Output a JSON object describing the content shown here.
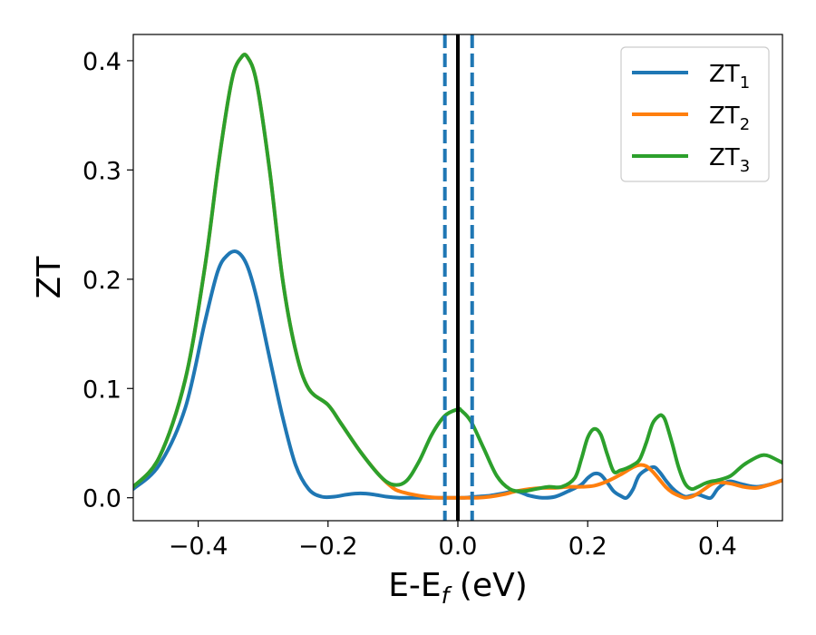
{
  "chart_data": {
    "type": "line",
    "xlabel": "E-E",
    "xlabel_subscript": "f",
    "xlabel_suffix": " (eV)",
    "ylabel": "ZT",
    "xlim": [
      -0.5,
      0.5
    ],
    "ylim": [
      -0.021,
      0.424
    ],
    "x_ticks": [
      -0.4,
      -0.2,
      0.0,
      0.2,
      0.4
    ],
    "x_tick_labels": [
      "−0.4",
      "−0.2",
      "0.0",
      "0.2",
      "0.4"
    ],
    "y_ticks": [
      0.0,
      0.1,
      0.2,
      0.3,
      0.4
    ],
    "y_tick_labels": [
      "0.0",
      "0.1",
      "0.2",
      "0.3",
      "0.4"
    ],
    "grid": false,
    "legend_position": "top-right",
    "colors": {
      "zt1": "#1f77b4",
      "zt2": "#ff7f0e",
      "zt3": "#2ca02c",
      "fermi": "#000000",
      "window": "#1f77b4"
    },
    "vertical_lines": [
      {
        "x": 0.0,
        "style": "solid",
        "color": "#000000"
      },
      {
        "x": -0.02,
        "style": "dashed",
        "color": "#1f77b4"
      },
      {
        "x": 0.022,
        "style": "dashed",
        "color": "#1f77b4"
      }
    ],
    "series": [
      {
        "name": "ZT",
        "name_subscript": "1",
        "color": "#1f77b4",
        "x": [
          -0.5,
          -0.46,
          -0.42,
          -0.39,
          -0.37,
          -0.355,
          -0.34,
          -0.325,
          -0.31,
          -0.29,
          -0.27,
          -0.25,
          -0.23,
          -0.21,
          -0.19,
          -0.17,
          -0.15,
          -0.13,
          -0.11,
          -0.09,
          -0.07,
          -0.05,
          -0.03,
          -0.01,
          0.0,
          0.01,
          0.03,
          0.05,
          0.07,
          0.09,
          0.11,
          0.13,
          0.15,
          0.17,
          0.19,
          0.2,
          0.21,
          0.22,
          0.23,
          0.24,
          0.25,
          0.26,
          0.27,
          0.28,
          0.3,
          0.31,
          0.32,
          0.33,
          0.34,
          0.35,
          0.36,
          0.37,
          0.38,
          0.39,
          0.4,
          0.41,
          0.42,
          0.44,
          0.46,
          0.48,
          0.5
        ],
        "y": [
          0.008,
          0.03,
          0.082,
          0.16,
          0.207,
          0.222,
          0.225,
          0.213,
          0.183,
          0.128,
          0.074,
          0.03,
          0.008,
          0.001,
          0.001,
          0.003,
          0.004,
          0.003,
          0.001,
          0.0,
          0.0,
          0.0,
          0.0,
          0.0,
          0.0,
          0.0,
          0.001,
          0.002,
          0.004,
          0.006,
          0.002,
          0.0,
          0.001,
          0.006,
          0.012,
          0.018,
          0.022,
          0.021,
          0.014,
          0.006,
          0.002,
          0.0,
          0.008,
          0.021,
          0.028,
          0.024,
          0.016,
          0.009,
          0.004,
          0.001,
          0.002,
          0.003,
          0.001,
          0.0,
          0.008,
          0.013,
          0.015,
          0.012,
          0.01,
          0.012,
          0.016
        ]
      },
      {
        "name": "ZT",
        "name_subscript": "2",
        "color": "#ff7f0e",
        "x": [
          -0.5,
          -0.46,
          -0.42,
          -0.39,
          -0.37,
          -0.355,
          -0.345,
          -0.335,
          -0.325,
          -0.31,
          -0.29,
          -0.27,
          -0.25,
          -0.23,
          -0.2,
          -0.18,
          -0.15,
          -0.12,
          -0.1,
          -0.09,
          -0.07,
          -0.05,
          -0.03,
          -0.01,
          0.0,
          0.01,
          0.03,
          0.05,
          0.07,
          0.09,
          0.11,
          0.13,
          0.15,
          0.17,
          0.19,
          0.21,
          0.23,
          0.25,
          0.27,
          0.28,
          0.29,
          0.3,
          0.31,
          0.32,
          0.33,
          0.34,
          0.35,
          0.36,
          0.37,
          0.38,
          0.39,
          0.4,
          0.42,
          0.44,
          0.46,
          0.48,
          0.5
        ],
        "y": [
          0.01,
          0.037,
          0.108,
          0.21,
          0.3,
          0.36,
          0.39,
          0.402,
          0.404,
          0.38,
          0.3,
          0.2,
          0.135,
          0.1,
          0.085,
          0.068,
          0.042,
          0.02,
          0.009,
          0.006,
          0.003,
          0.001,
          0.0,
          0.0,
          0.0,
          0.0,
          0.0,
          0.001,
          0.003,
          0.006,
          0.008,
          0.009,
          0.009,
          0.01,
          0.01,
          0.011,
          0.015,
          0.021,
          0.028,
          0.03,
          0.029,
          0.024,
          0.017,
          0.01,
          0.005,
          0.002,
          0.0,
          0.001,
          0.004,
          0.008,
          0.012,
          0.014,
          0.013,
          0.01,
          0.009,
          0.012,
          0.016
        ]
      },
      {
        "name": "ZT",
        "name_subscript": "3",
        "color": "#2ca02c",
        "x": [
          -0.5,
          -0.46,
          -0.42,
          -0.39,
          -0.37,
          -0.355,
          -0.345,
          -0.335,
          -0.325,
          -0.31,
          -0.29,
          -0.27,
          -0.25,
          -0.23,
          -0.2,
          -0.18,
          -0.15,
          -0.12,
          -0.1,
          -0.08,
          -0.06,
          -0.04,
          -0.02,
          0.0,
          0.005,
          0.02,
          0.04,
          0.06,
          0.08,
          0.1,
          0.12,
          0.14,
          0.16,
          0.18,
          0.19,
          0.2,
          0.21,
          0.22,
          0.23,
          0.24,
          0.25,
          0.26,
          0.27,
          0.28,
          0.29,
          0.3,
          0.31,
          0.315,
          0.32,
          0.33,
          0.34,
          0.35,
          0.36,
          0.37,
          0.38,
          0.39,
          0.4,
          0.42,
          0.44,
          0.46,
          0.47,
          0.48,
          0.5
        ],
        "y": [
          0.01,
          0.037,
          0.108,
          0.21,
          0.3,
          0.36,
          0.39,
          0.402,
          0.404,
          0.38,
          0.3,
          0.2,
          0.135,
          0.1,
          0.085,
          0.068,
          0.042,
          0.02,
          0.012,
          0.015,
          0.033,
          0.058,
          0.075,
          0.081,
          0.08,
          0.07,
          0.045,
          0.02,
          0.008,
          0.006,
          0.008,
          0.01,
          0.01,
          0.018,
          0.035,
          0.055,
          0.063,
          0.058,
          0.04,
          0.024,
          0.025,
          0.027,
          0.03,
          0.035,
          0.05,
          0.068,
          0.075,
          0.075,
          0.07,
          0.05,
          0.028,
          0.013,
          0.008,
          0.01,
          0.013,
          0.015,
          0.016,
          0.02,
          0.03,
          0.037,
          0.039,
          0.038,
          0.032
        ]
      }
    ]
  }
}
